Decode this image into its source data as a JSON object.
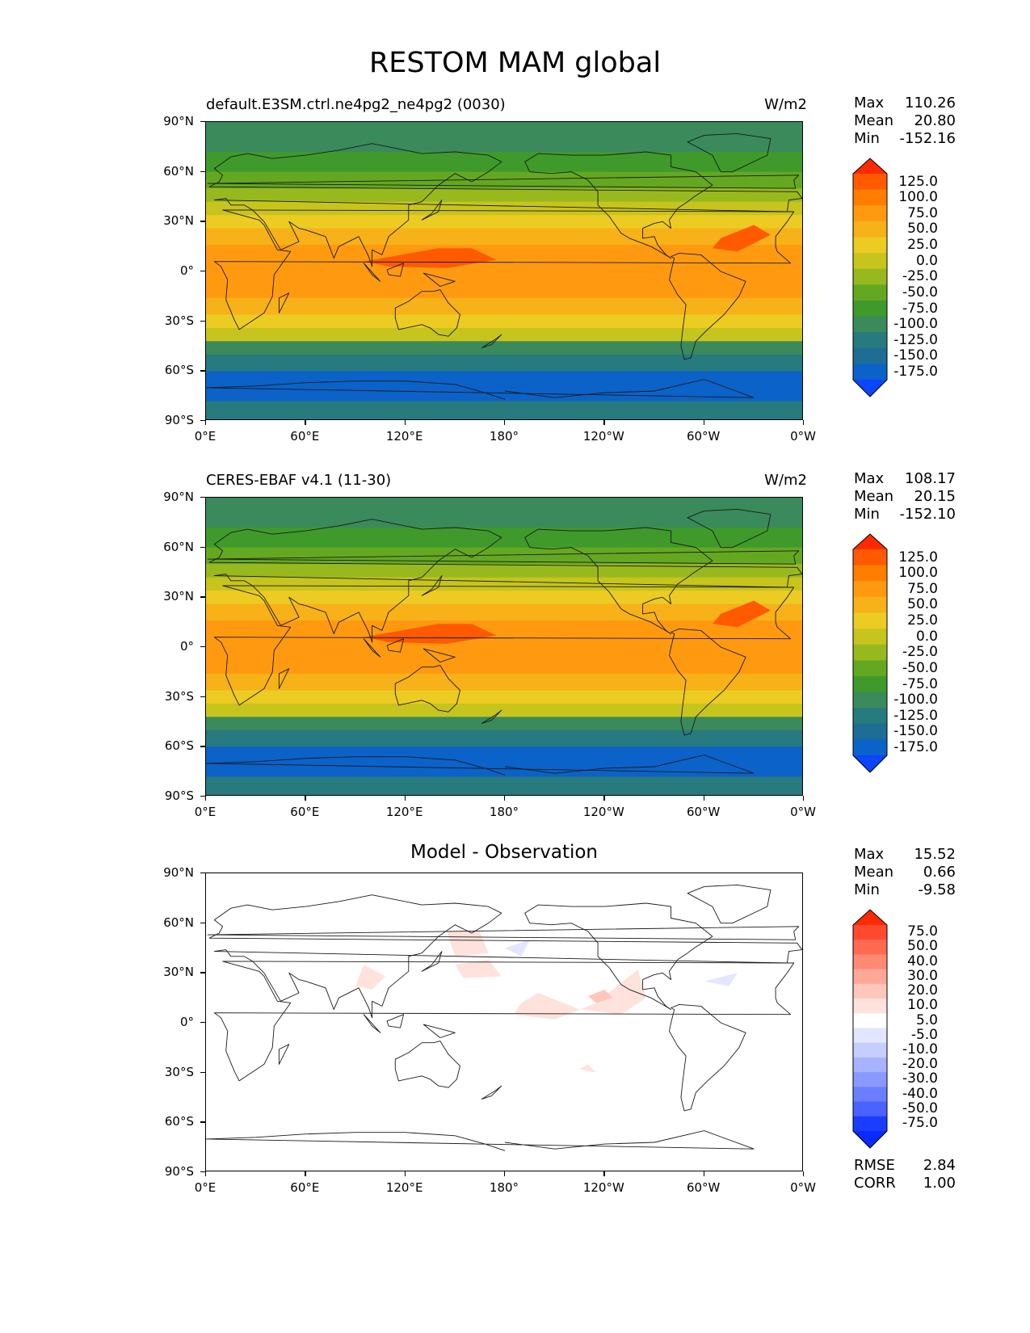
{
  "title": "RESTOM MAM global",
  "panels": [
    {
      "title_left": "default.E3SM.ctrl.ne4pg2_ne4pg2 (0030)",
      "title_right": "W/m2",
      "title_center": "",
      "stats": [
        {
          "label": "Max",
          "value": "110.26"
        },
        {
          "label": "Mean",
          "value": "20.80"
        },
        {
          "label": "Min",
          "value": "-152.16"
        }
      ],
      "colorbar_labels": [
        "125.0",
        "100.0",
        "75.0",
        "50.0",
        "25.0",
        "0.0",
        "-25.0",
        "-50.0",
        "-75.0",
        "-100.0",
        "-125.0",
        "-150.0",
        "-175.0"
      ],
      "colorbar_colors": [
        "#ff2a00",
        "#ff5a00",
        "#ff7e00",
        "#ff9a10",
        "#f7b119",
        "#eccb22",
        "#c7c41d",
        "#98b91e",
        "#64a822",
        "#3f9a2b",
        "#3a8a5c",
        "#277a7e",
        "#1d6d94",
        "#0b62c9",
        "#0a45ff"
      ],
      "scale": "absolute"
    },
    {
      "title_left": "CERES-EBAF v4.1 (11-30)",
      "title_right": "W/m2",
      "title_center": "",
      "stats": [
        {
          "label": "Max",
          "value": "108.17"
        },
        {
          "label": "Mean",
          "value": "20.15"
        },
        {
          "label": "Min",
          "value": "-152.10"
        }
      ],
      "colorbar_labels": [
        "125.0",
        "100.0",
        "75.0",
        "50.0",
        "25.0",
        "0.0",
        "-25.0",
        "-50.0",
        "-75.0",
        "-100.0",
        "-125.0",
        "-150.0",
        "-175.0"
      ],
      "colorbar_colors": [
        "#ff2a00",
        "#ff5a00",
        "#ff7e00",
        "#ff9a10",
        "#f7b119",
        "#eccb22",
        "#c7c41d",
        "#98b91e",
        "#64a822",
        "#3f9a2b",
        "#3a8a5c",
        "#277a7e",
        "#1d6d94",
        "#0b62c9",
        "#0a45ff"
      ],
      "scale": "absolute"
    },
    {
      "title_left": "",
      "title_right": "",
      "title_center": "Model - Observation",
      "stats": [
        {
          "label": "Max",
          "value": "15.52"
        },
        {
          "label": "Mean",
          "value": "0.66"
        },
        {
          "label": "Min",
          "value": "-9.58"
        }
      ],
      "colorbar_labels": [
        "75.0",
        "50.0",
        "40.0",
        "30.0",
        "20.0",
        "10.0",
        "5.0",
        "-5.0",
        "-10.0",
        "-20.0",
        "-30.0",
        "-40.0",
        "-50.0",
        "-75.0"
      ],
      "colorbar_colors": [
        "#ff2a00",
        "#ff4a30",
        "#ff6a50",
        "#ff8a74",
        "#ffa898",
        "#ffc6bc",
        "#ffe2dc",
        "#ffffff",
        "#e2e6ff",
        "#c6cdff",
        "#a8b3ff",
        "#8a99ff",
        "#6a7eff",
        "#4a62ff",
        "#1a3dff",
        "#0a2aff"
      ],
      "scale": "diff",
      "metrics": [
        {
          "label": "RMSE",
          "value": "2.84"
        },
        {
          "label": "CORR",
          "value": "1.00"
        }
      ]
    }
  ],
  "axes": {
    "y_ticks": [
      "90°N",
      "60°N",
      "30°N",
      "0°",
      "30°S",
      "60°S",
      "90°S"
    ],
    "x_ticks": [
      "0°E",
      "60°E",
      "120°E",
      "180°",
      "120°W",
      "60°W",
      "0°W"
    ]
  }
}
